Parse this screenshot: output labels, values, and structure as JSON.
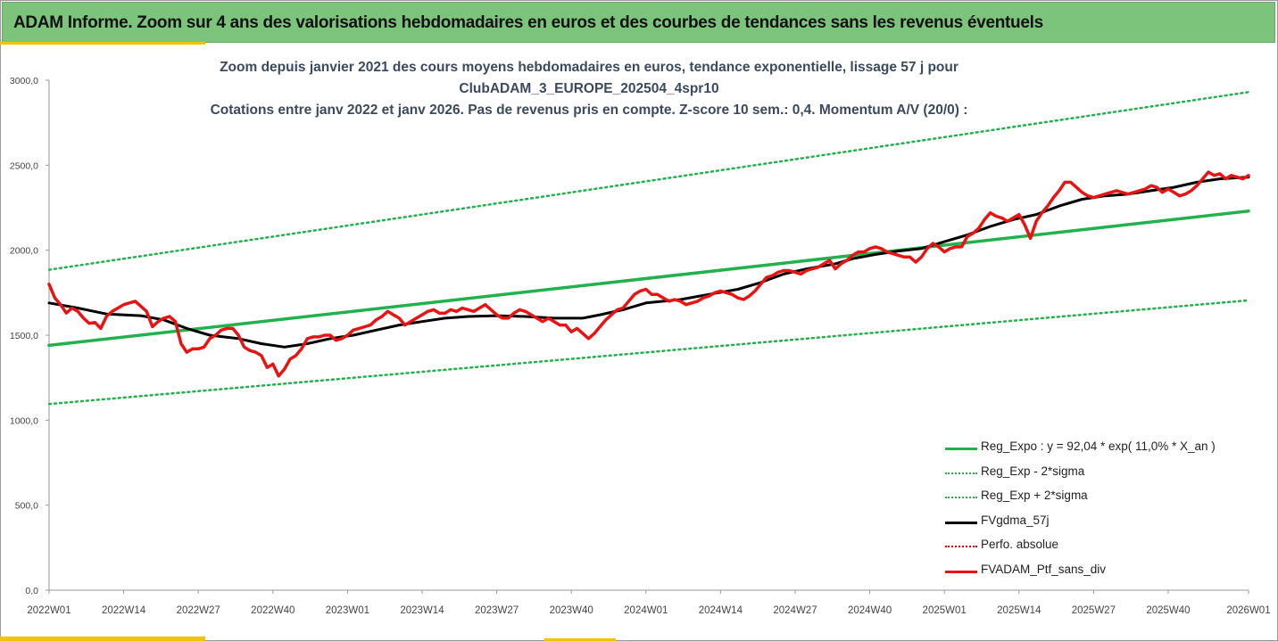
{
  "banner": {
    "title": "ADAM Informe. Zoom sur 4 ans des valorisations hebdomadaires en euros et des courbes de tendances sans les revenus éventuels"
  },
  "chart_title": {
    "line1": "Zoom depuis janvier 2021 des cours moyens hebdomadaires  en euros, tendance exponentielle, lissage 57 j pour",
    "line2": "ClubADAM_3_EUROPE_202504_4spr10",
    "line3": "Cotations  entre janv 2022 et janv 2026. Pas de revenus pris en compte. Z-score 10 sem.: 0,4. Momentum A/V (20/0) :"
  },
  "chart_data": {
    "type": "line",
    "ylim": [
      0,
      3000
    ],
    "y_ticks": [
      {
        "value": 0,
        "label": "0,0"
      },
      {
        "value": 500,
        "label": "500,0"
      },
      {
        "value": 1000,
        "label": "1000,0"
      },
      {
        "value": 1500,
        "label": "1500,0"
      },
      {
        "value": 2000,
        "label": "2000,0"
      },
      {
        "value": 2500,
        "label": "2500,0"
      },
      {
        "value": 3000,
        "label": "3000,0"
      }
    ],
    "x_range": [
      0,
      209
    ],
    "x_ticks": [
      {
        "pos": 0,
        "label": "2022W01"
      },
      {
        "pos": 13,
        "label": "2022W14"
      },
      {
        "pos": 26,
        "label": "2022W27"
      },
      {
        "pos": 39,
        "label": "2022W40"
      },
      {
        "pos": 52,
        "label": "2023W01"
      },
      {
        "pos": 65,
        "label": "2023W14"
      },
      {
        "pos": 78,
        "label": "2023W27"
      },
      {
        "pos": 91,
        "label": "2023W40"
      },
      {
        "pos": 104,
        "label": "2024W01"
      },
      {
        "pos": 117,
        "label": "2024W14"
      },
      {
        "pos": 130,
        "label": "2024W27"
      },
      {
        "pos": 143,
        "label": "2024W40"
      },
      {
        "pos": 156,
        "label": "2025W01"
      },
      {
        "pos": 169,
        "label": "2025W14"
      },
      {
        "pos": 182,
        "label": "2025W27"
      },
      {
        "pos": 195,
        "label": "2025W40"
      },
      {
        "pos": 209,
        "label": "2026W01"
      }
    ],
    "grid": false,
    "legend_position": "bottom-right",
    "series": [
      {
        "name": "Reg_Expo : y = 92,04 * exp( 11,0% *  X_an )",
        "style": "solid",
        "color": "#22b14c",
        "width": 3.5,
        "points": [
          [
            0,
            1440
          ],
          [
            209,
            2230
          ]
        ]
      },
      {
        "name": "Reg_Exp - 2*sigma",
        "style": "dotted",
        "color": "#22b14c",
        "width": 2.5,
        "points": [
          [
            0,
            1095
          ],
          [
            209,
            1705
          ]
        ]
      },
      {
        "name": "Reg_Exp + 2*sigma",
        "style": "dotted",
        "color": "#22b14c",
        "width": 2.5,
        "points": [
          [
            0,
            1885
          ],
          [
            209,
            2930
          ]
        ]
      },
      {
        "name": "FVgdma_57j",
        "style": "solid",
        "color": "#000000",
        "width": 3,
        "points": [
          [
            0,
            1690
          ],
          [
            5,
            1660
          ],
          [
            10,
            1625
          ],
          [
            16,
            1615
          ],
          [
            20,
            1590
          ],
          [
            24,
            1540
          ],
          [
            28,
            1500
          ],
          [
            33,
            1480
          ],
          [
            37,
            1450
          ],
          [
            41,
            1430
          ],
          [
            45,
            1450
          ],
          [
            49,
            1480
          ],
          [
            53,
            1500
          ],
          [
            57,
            1530
          ],
          [
            61,
            1560
          ],
          [
            65,
            1580
          ],
          [
            69,
            1600
          ],
          [
            73,
            1610
          ],
          [
            78,
            1615
          ],
          [
            83,
            1610
          ],
          [
            88,
            1600
          ],
          [
            93,
            1600
          ],
          [
            96,
            1620
          ],
          [
            100,
            1650
          ],
          [
            104,
            1690
          ],
          [
            110,
            1710
          ],
          [
            115,
            1740
          ],
          [
            120,
            1770
          ],
          [
            124,
            1810
          ],
          [
            128,
            1860
          ],
          [
            132,
            1890
          ],
          [
            137,
            1920
          ],
          [
            140,
            1950
          ],
          [
            144,
            1975
          ],
          [
            148,
            1995
          ],
          [
            152,
            2010
          ],
          [
            156,
            2050
          ],
          [
            160,
            2090
          ],
          [
            164,
            2140
          ],
          [
            168,
            2180
          ],
          [
            172,
            2210
          ],
          [
            176,
            2260
          ],
          [
            180,
            2300
          ],
          [
            184,
            2320
          ],
          [
            188,
            2330
          ],
          [
            192,
            2350
          ],
          [
            196,
            2370
          ],
          [
            200,
            2400
          ],
          [
            204,
            2420
          ],
          [
            209,
            2430
          ]
        ]
      },
      {
        "name": "Perfo. absolue",
        "style": "dotted",
        "color": "#e00000",
        "width": 2.5,
        "points": []
      },
      {
        "name": "FVADAM_Ptf_sans_div",
        "style": "solid",
        "color": "#e81414",
        "width": 3.5,
        "points": [
          [
            0,
            1800
          ],
          [
            1,
            1720
          ],
          [
            2,
            1680
          ],
          [
            3,
            1630
          ],
          [
            4,
            1660
          ],
          [
            5,
            1640
          ],
          [
            6,
            1600
          ],
          [
            7,
            1570
          ],
          [
            8,
            1575
          ],
          [
            9,
            1540
          ],
          [
            10,
            1610
          ],
          [
            11,
            1640
          ],
          [
            12,
            1660
          ],
          [
            13,
            1680
          ],
          [
            14,
            1690
          ],
          [
            15,
            1700
          ],
          [
            16,
            1670
          ],
          [
            17,
            1640
          ],
          [
            18,
            1550
          ],
          [
            19,
            1580
          ],
          [
            20,
            1600
          ],
          [
            21,
            1610
          ],
          [
            22,
            1580
          ],
          [
            23,
            1450
          ],
          [
            24,
            1400
          ],
          [
            25,
            1420
          ],
          [
            26,
            1420
          ],
          [
            27,
            1430
          ],
          [
            28,
            1480
          ],
          [
            29,
            1500
          ],
          [
            30,
            1530
          ],
          [
            31,
            1540
          ],
          [
            32,
            1540
          ],
          [
            33,
            1500
          ],
          [
            34,
            1430
          ],
          [
            35,
            1410
          ],
          [
            36,
            1400
          ],
          [
            37,
            1380
          ],
          [
            38,
            1310
          ],
          [
            39,
            1330
          ],
          [
            40,
            1260
          ],
          [
            41,
            1300
          ],
          [
            42,
            1360
          ],
          [
            43,
            1380
          ],
          [
            44,
            1420
          ],
          [
            45,
            1480
          ],
          [
            46,
            1490
          ],
          [
            47,
            1490
          ],
          [
            48,
            1500
          ],
          [
            49,
            1500
          ],
          [
            50,
            1470
          ],
          [
            51,
            1480
          ],
          [
            52,
            1500
          ],
          [
            53,
            1530
          ],
          [
            54,
            1540
          ],
          [
            55,
            1550
          ],
          [
            56,
            1560
          ],
          [
            57,
            1590
          ],
          [
            58,
            1610
          ],
          [
            59,
            1640
          ],
          [
            60,
            1620
          ],
          [
            61,
            1600
          ],
          [
            62,
            1560
          ],
          [
            63,
            1580
          ],
          [
            64,
            1600
          ],
          [
            65,
            1620
          ],
          [
            66,
            1640
          ],
          [
            67,
            1650
          ],
          [
            68,
            1630
          ],
          [
            69,
            1630
          ],
          [
            70,
            1650
          ],
          [
            71,
            1640
          ],
          [
            72,
            1660
          ],
          [
            73,
            1650
          ],
          [
            74,
            1640
          ],
          [
            75,
            1660
          ],
          [
            76,
            1680
          ],
          [
            77,
            1650
          ],
          [
            78,
            1620
          ],
          [
            79,
            1600
          ],
          [
            80,
            1600
          ],
          [
            81,
            1630
          ],
          [
            82,
            1650
          ],
          [
            83,
            1640
          ],
          [
            84,
            1620
          ],
          [
            85,
            1600
          ],
          [
            86,
            1580
          ],
          [
            87,
            1600
          ],
          [
            88,
            1580
          ],
          [
            89,
            1560
          ],
          [
            90,
            1560
          ],
          [
            91,
            1520
          ],
          [
            92,
            1540
          ],
          [
            93,
            1510
          ],
          [
            94,
            1480
          ],
          [
            95,
            1510
          ],
          [
            96,
            1550
          ],
          [
            97,
            1590
          ],
          [
            98,
            1620
          ],
          [
            99,
            1650
          ],
          [
            100,
            1660
          ],
          [
            101,
            1700
          ],
          [
            102,
            1740
          ],
          [
            103,
            1760
          ],
          [
            104,
            1770
          ],
          [
            105,
            1740
          ],
          [
            106,
            1740
          ],
          [
            107,
            1720
          ],
          [
            108,
            1700
          ],
          [
            109,
            1710
          ],
          [
            110,
            1700
          ],
          [
            111,
            1680
          ],
          [
            112,
            1690
          ],
          [
            113,
            1700
          ],
          [
            114,
            1720
          ],
          [
            115,
            1730
          ],
          [
            116,
            1750
          ],
          [
            117,
            1760
          ],
          [
            118,
            1750
          ],
          [
            119,
            1740
          ],
          [
            120,
            1720
          ],
          [
            121,
            1710
          ],
          [
            122,
            1730
          ],
          [
            123,
            1760
          ],
          [
            124,
            1800
          ],
          [
            125,
            1840
          ],
          [
            126,
            1850
          ],
          [
            127,
            1870
          ],
          [
            128,
            1880
          ],
          [
            129,
            1880
          ],
          [
            130,
            1870
          ],
          [
            131,
            1860
          ],
          [
            132,
            1880
          ],
          [
            133,
            1890
          ],
          [
            134,
            1900
          ],
          [
            135,
            1920
          ],
          [
            136,
            1940
          ],
          [
            137,
            1890
          ],
          [
            138,
            1920
          ],
          [
            139,
            1940
          ],
          [
            140,
            1970
          ],
          [
            141,
            1990
          ],
          [
            142,
            1990
          ],
          [
            143,
            2010
          ],
          [
            144,
            2020
          ],
          [
            145,
            2010
          ],
          [
            146,
            1990
          ],
          [
            147,
            1980
          ],
          [
            148,
            1970
          ],
          [
            149,
            1960
          ],
          [
            150,
            1960
          ],
          [
            151,
            1930
          ],
          [
            152,
            1960
          ],
          [
            153,
            2010
          ],
          [
            154,
            2040
          ],
          [
            155,
            2020
          ],
          [
            156,
            1990
          ],
          [
            157,
            2010
          ],
          [
            158,
            2020
          ],
          [
            159,
            2020
          ],
          [
            160,
            2080
          ],
          [
            161,
            2100
          ],
          [
            162,
            2130
          ],
          [
            163,
            2180
          ],
          [
            164,
            2220
          ],
          [
            165,
            2200
          ],
          [
            166,
            2190
          ],
          [
            167,
            2170
          ],
          [
            168,
            2190
          ],
          [
            169,
            2210
          ],
          [
            170,
            2150
          ],
          [
            171,
            2070
          ],
          [
            172,
            2170
          ],
          [
            173,
            2220
          ],
          [
            174,
            2260
          ],
          [
            175,
            2310
          ],
          [
            176,
            2350
          ],
          [
            177,
            2400
          ],
          [
            178,
            2400
          ],
          [
            179,
            2370
          ],
          [
            180,
            2340
          ],
          [
            181,
            2320
          ],
          [
            182,
            2310
          ],
          [
            183,
            2320
          ],
          [
            184,
            2330
          ],
          [
            185,
            2340
          ],
          [
            186,
            2350
          ],
          [
            187,
            2340
          ],
          [
            188,
            2330
          ],
          [
            189,
            2340
          ],
          [
            190,
            2350
          ],
          [
            191,
            2360
          ],
          [
            192,
            2380
          ],
          [
            193,
            2370
          ],
          [
            194,
            2340
          ],
          [
            195,
            2360
          ],
          [
            196,
            2340
          ],
          [
            197,
            2320
          ],
          [
            198,
            2330
          ],
          [
            199,
            2350
          ],
          [
            200,
            2380
          ],
          [
            201,
            2420
          ],
          [
            202,
            2460
          ],
          [
            203,
            2440
          ],
          [
            204,
            2450
          ],
          [
            205,
            2420
          ],
          [
            206,
            2440
          ],
          [
            207,
            2430
          ],
          [
            208,
            2420
          ],
          [
            209,
            2440
          ]
        ]
      }
    ]
  }
}
